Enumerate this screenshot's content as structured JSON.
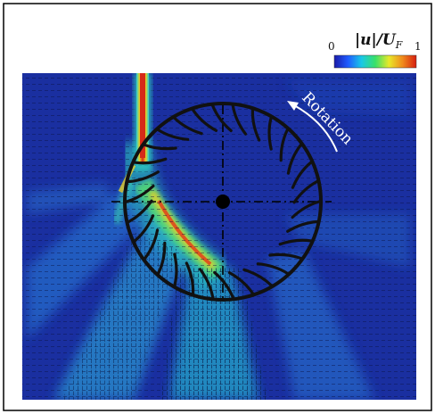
{
  "colorbar": {
    "title_main": "|u|/U",
    "title_sub": "F",
    "min_label": "0",
    "max_label": "1",
    "stops": [
      "#1a1aa8",
      "#1f5cff",
      "#19c8e6",
      "#38e06a",
      "#e8e82a",
      "#f08a1c",
      "#d61e10"
    ]
  },
  "annotation": {
    "rotation_label": "Rotation"
  },
  "colors": {
    "background_flow": "#1a2fa0",
    "frame": "#000000",
    "rotor": "#111111",
    "jet_core": "#d62a18"
  },
  "rotor": {
    "blade_count": 30
  }
}
